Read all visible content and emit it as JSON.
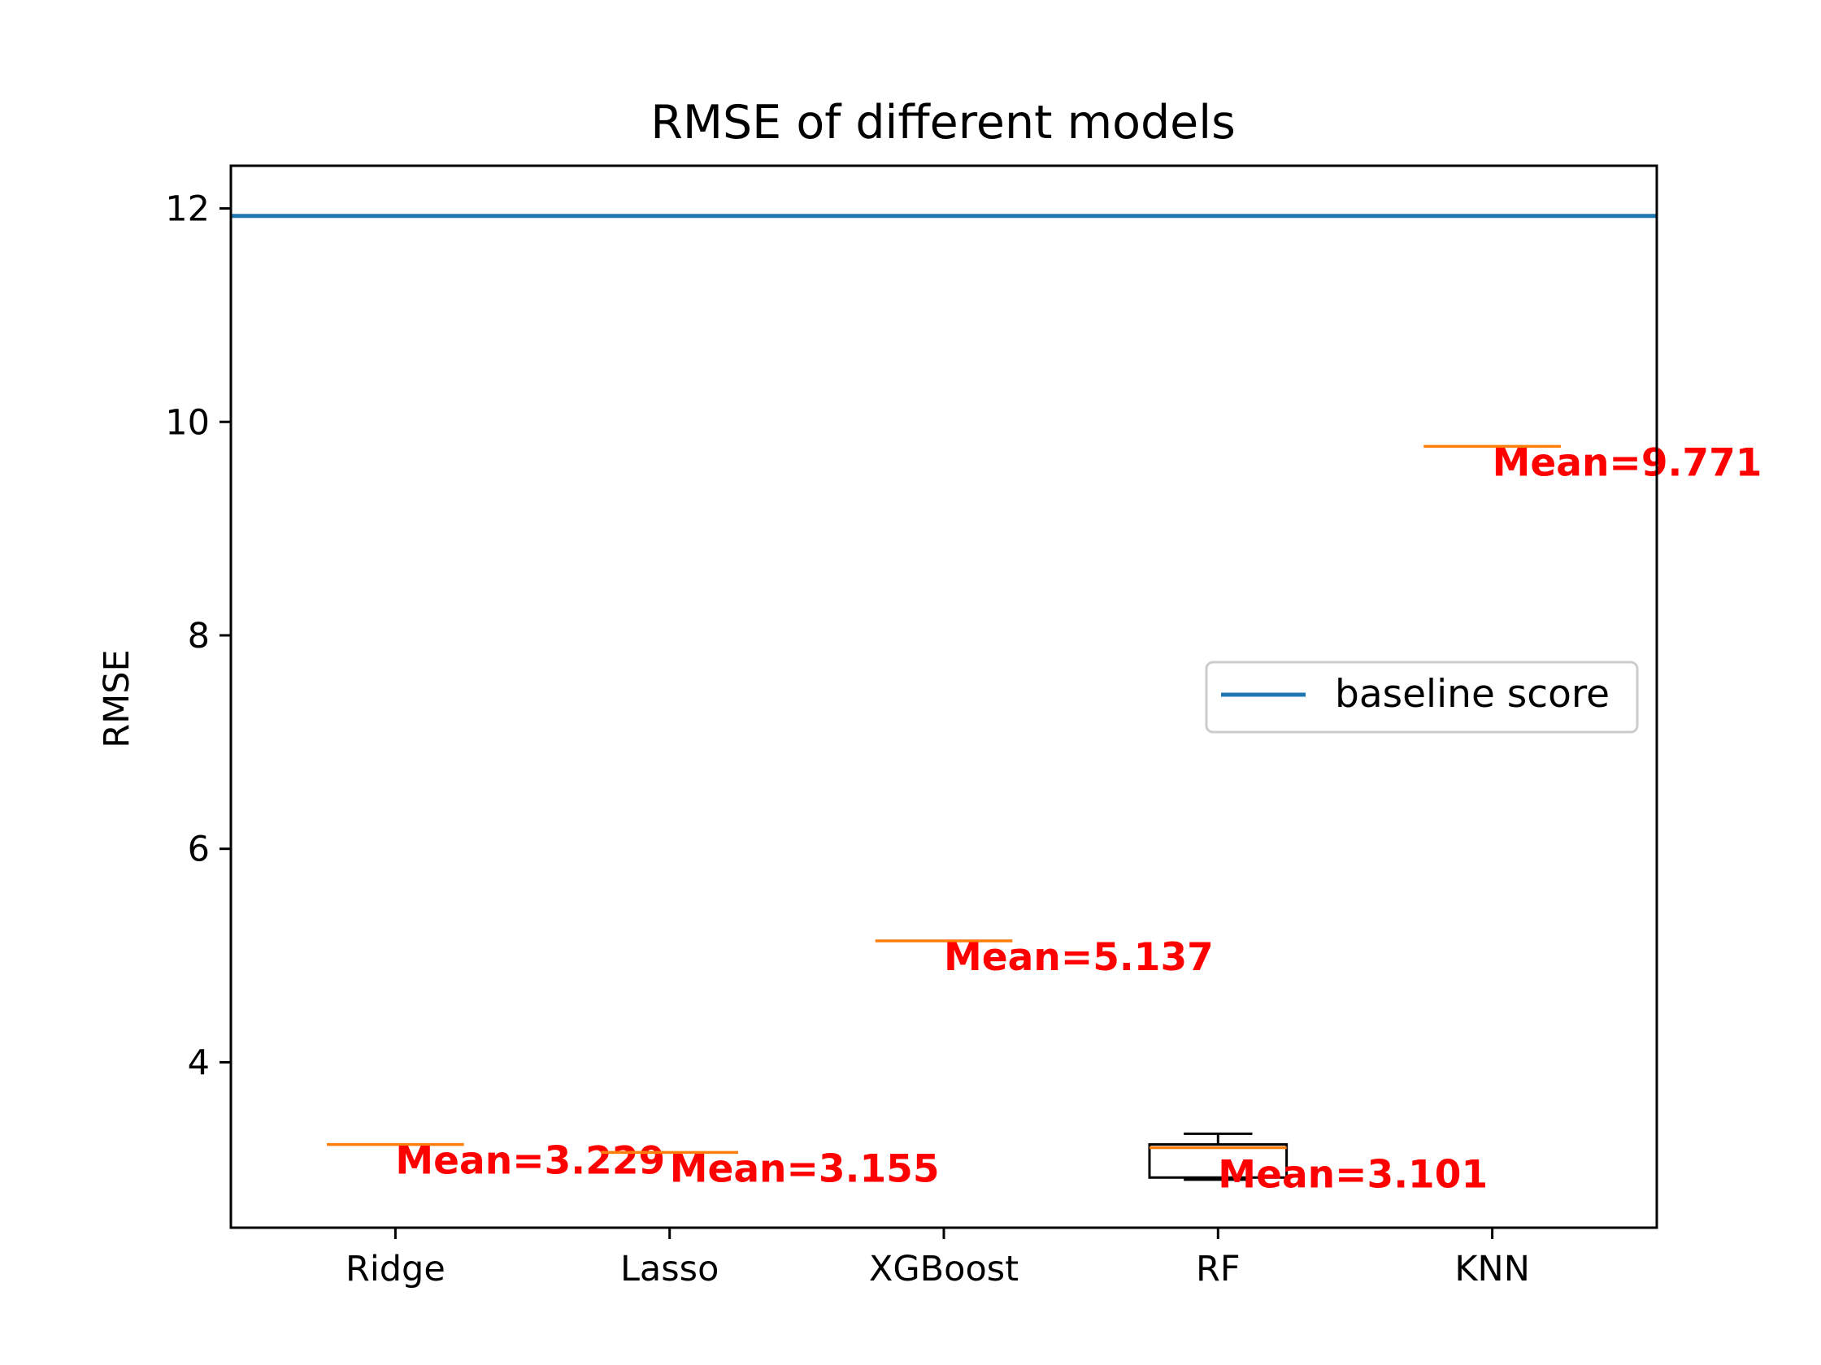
{
  "chart_data": {
    "type": "box",
    "title": "RMSE of different models",
    "xlabel": "",
    "ylabel": "RMSE",
    "categories": [
      "Ridge",
      "Lasso",
      "XGBoost",
      "RF",
      "KNN"
    ],
    "ylim": [
      2.45,
      12.4
    ],
    "yticks": [
      4,
      6,
      8,
      10,
      12
    ],
    "series": [
      {
        "category": "Ridge",
        "median": 3.229,
        "q1": 3.229,
        "q3": 3.229,
        "whisker_low": 3.229,
        "whisker_high": 3.229,
        "mean": 3.229,
        "mean_label": "Mean=3.229"
      },
      {
        "category": "Lasso",
        "median": 3.155,
        "q1": 3.155,
        "q3": 3.155,
        "whisker_low": 3.155,
        "whisker_high": 3.155,
        "mean": 3.155,
        "mean_label": "Mean=3.155"
      },
      {
        "category": "XGBoost",
        "median": 5.137,
        "q1": 5.137,
        "q3": 5.137,
        "whisker_low": 5.137,
        "whisker_high": 5.137,
        "mean": 5.137,
        "mean_label": "Mean=5.137"
      },
      {
        "category": "RF",
        "median": 3.2,
        "q1": 2.92,
        "q3": 3.23,
        "whisker_low": 2.9,
        "whisker_high": 3.33,
        "mean": 3.101,
        "mean_label": "Mean=3.101"
      },
      {
        "category": "KNN",
        "median": 9.771,
        "q1": 9.771,
        "q3": 9.771,
        "whisker_low": 9.771,
        "whisker_high": 9.771,
        "mean": 9.771,
        "mean_label": "Mean=9.771"
      }
    ],
    "baseline": {
      "name": "baseline score",
      "value": 11.93
    },
    "legend": {
      "entries": [
        "baseline score"
      ],
      "placement": "center-right"
    },
    "grid": false,
    "colors": {
      "baseline": "#1f77b4",
      "median": "#ff7f0e",
      "box": "#000000",
      "mean_label": "#ff0000",
      "legend_border": "#cccccc"
    }
  }
}
